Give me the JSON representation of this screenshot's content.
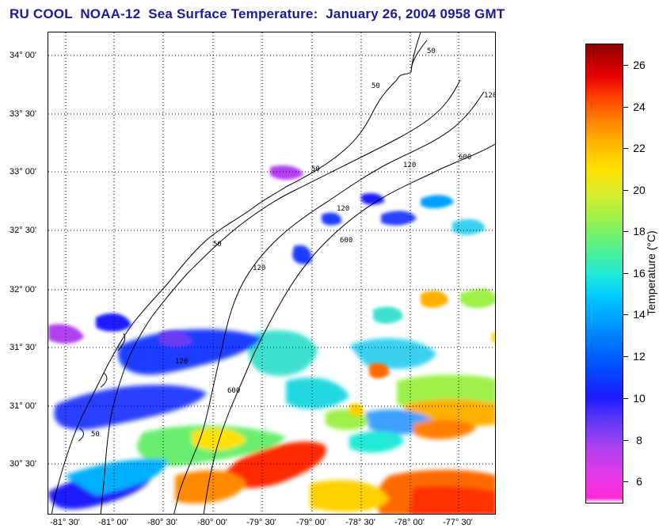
{
  "title": "RU COOL  NOAA-12  Sea Surface Temperature:  January 26, 2004 0958 GMT",
  "map": {
    "lat_labels": [
      "34° 00'",
      "33° 30'",
      "33° 00'",
      "32° 30'",
      "32° 00'",
      "31° 30'",
      "31° 00'",
      "30° 30'"
    ],
    "lon_labels": [
      "-81° 30'",
      "-81° 00'",
      "-80° 30'",
      "-80° 00'",
      "-79° 30'",
      "-79° 00'",
      "-78° 30'",
      "-78° 00'",
      "-77° 30'"
    ],
    "isobath_labels": [
      "50",
      "120",
      "50",
      "120",
      "600",
      "50",
      "120",
      "600",
      "50",
      "120",
      "50",
      "120",
      "600"
    ]
  },
  "colorbar": {
    "title": "Temperature (°C)",
    "ticks": [
      "26",
      "24",
      "22",
      "20",
      "18",
      "16",
      "14",
      "12",
      "10",
      "8",
      "6"
    ],
    "range": [
      5,
      27
    ]
  },
  "colors": {
    "title": "#1a1aa0",
    "land": "#ffffff",
    "coast": "#000000",
    "grid": "#000000"
  }
}
